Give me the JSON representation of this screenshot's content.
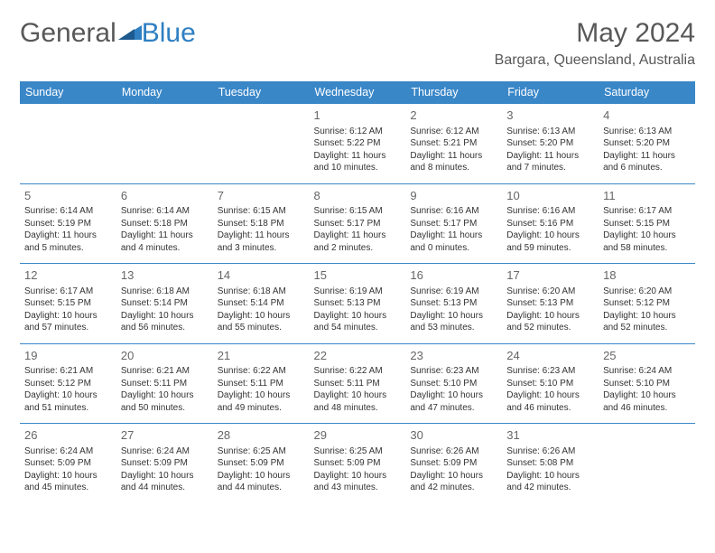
{
  "brand": {
    "part1": "General",
    "part2": "Blue"
  },
  "title": "May 2024",
  "location": "Bargara, Queensland, Australia",
  "colors": {
    "header_bg": "#3a87c8",
    "header_text": "#ffffff",
    "border": "#3a87c8",
    "title_text": "#585858",
    "body_text": "#333333",
    "daynum_text": "#666666",
    "background": "#ffffff",
    "logo_gray": "#585858",
    "logo_blue": "#2f7fc2"
  },
  "weekdays": [
    "Sunday",
    "Monday",
    "Tuesday",
    "Wednesday",
    "Thursday",
    "Friday",
    "Saturday"
  ],
  "weeks": [
    [
      null,
      null,
      null,
      {
        "n": "1",
        "sr": "6:12 AM",
        "ss": "5:22 PM",
        "dl": "11 hours and 10 minutes."
      },
      {
        "n": "2",
        "sr": "6:12 AM",
        "ss": "5:21 PM",
        "dl": "11 hours and 8 minutes."
      },
      {
        "n": "3",
        "sr": "6:13 AM",
        "ss": "5:20 PM",
        "dl": "11 hours and 7 minutes."
      },
      {
        "n": "4",
        "sr": "6:13 AM",
        "ss": "5:20 PM",
        "dl": "11 hours and 6 minutes."
      }
    ],
    [
      {
        "n": "5",
        "sr": "6:14 AM",
        "ss": "5:19 PM",
        "dl": "11 hours and 5 minutes."
      },
      {
        "n": "6",
        "sr": "6:14 AM",
        "ss": "5:18 PM",
        "dl": "11 hours and 4 minutes."
      },
      {
        "n": "7",
        "sr": "6:15 AM",
        "ss": "5:18 PM",
        "dl": "11 hours and 3 minutes."
      },
      {
        "n": "8",
        "sr": "6:15 AM",
        "ss": "5:17 PM",
        "dl": "11 hours and 2 minutes."
      },
      {
        "n": "9",
        "sr": "6:16 AM",
        "ss": "5:17 PM",
        "dl": "11 hours and 0 minutes."
      },
      {
        "n": "10",
        "sr": "6:16 AM",
        "ss": "5:16 PM",
        "dl": "10 hours and 59 minutes."
      },
      {
        "n": "11",
        "sr": "6:17 AM",
        "ss": "5:15 PM",
        "dl": "10 hours and 58 minutes."
      }
    ],
    [
      {
        "n": "12",
        "sr": "6:17 AM",
        "ss": "5:15 PM",
        "dl": "10 hours and 57 minutes."
      },
      {
        "n": "13",
        "sr": "6:18 AM",
        "ss": "5:14 PM",
        "dl": "10 hours and 56 minutes."
      },
      {
        "n": "14",
        "sr": "6:18 AM",
        "ss": "5:14 PM",
        "dl": "10 hours and 55 minutes."
      },
      {
        "n": "15",
        "sr": "6:19 AM",
        "ss": "5:13 PM",
        "dl": "10 hours and 54 minutes."
      },
      {
        "n": "16",
        "sr": "6:19 AM",
        "ss": "5:13 PM",
        "dl": "10 hours and 53 minutes."
      },
      {
        "n": "17",
        "sr": "6:20 AM",
        "ss": "5:13 PM",
        "dl": "10 hours and 52 minutes."
      },
      {
        "n": "18",
        "sr": "6:20 AM",
        "ss": "5:12 PM",
        "dl": "10 hours and 52 minutes."
      }
    ],
    [
      {
        "n": "19",
        "sr": "6:21 AM",
        "ss": "5:12 PM",
        "dl": "10 hours and 51 minutes."
      },
      {
        "n": "20",
        "sr": "6:21 AM",
        "ss": "5:11 PM",
        "dl": "10 hours and 50 minutes."
      },
      {
        "n": "21",
        "sr": "6:22 AM",
        "ss": "5:11 PM",
        "dl": "10 hours and 49 minutes."
      },
      {
        "n": "22",
        "sr": "6:22 AM",
        "ss": "5:11 PM",
        "dl": "10 hours and 48 minutes."
      },
      {
        "n": "23",
        "sr": "6:23 AM",
        "ss": "5:10 PM",
        "dl": "10 hours and 47 minutes."
      },
      {
        "n": "24",
        "sr": "6:23 AM",
        "ss": "5:10 PM",
        "dl": "10 hours and 46 minutes."
      },
      {
        "n": "25",
        "sr": "6:24 AM",
        "ss": "5:10 PM",
        "dl": "10 hours and 46 minutes."
      }
    ],
    [
      {
        "n": "26",
        "sr": "6:24 AM",
        "ss": "5:09 PM",
        "dl": "10 hours and 45 minutes."
      },
      {
        "n": "27",
        "sr": "6:24 AM",
        "ss": "5:09 PM",
        "dl": "10 hours and 44 minutes."
      },
      {
        "n": "28",
        "sr": "6:25 AM",
        "ss": "5:09 PM",
        "dl": "10 hours and 44 minutes."
      },
      {
        "n": "29",
        "sr": "6:25 AM",
        "ss": "5:09 PM",
        "dl": "10 hours and 43 minutes."
      },
      {
        "n": "30",
        "sr": "6:26 AM",
        "ss": "5:09 PM",
        "dl": "10 hours and 42 minutes."
      },
      {
        "n": "31",
        "sr": "6:26 AM",
        "ss": "5:08 PM",
        "dl": "10 hours and 42 minutes."
      },
      null
    ]
  ],
  "labels": {
    "sunrise": "Sunrise:",
    "sunset": "Sunset:",
    "daylight": "Daylight:"
  }
}
